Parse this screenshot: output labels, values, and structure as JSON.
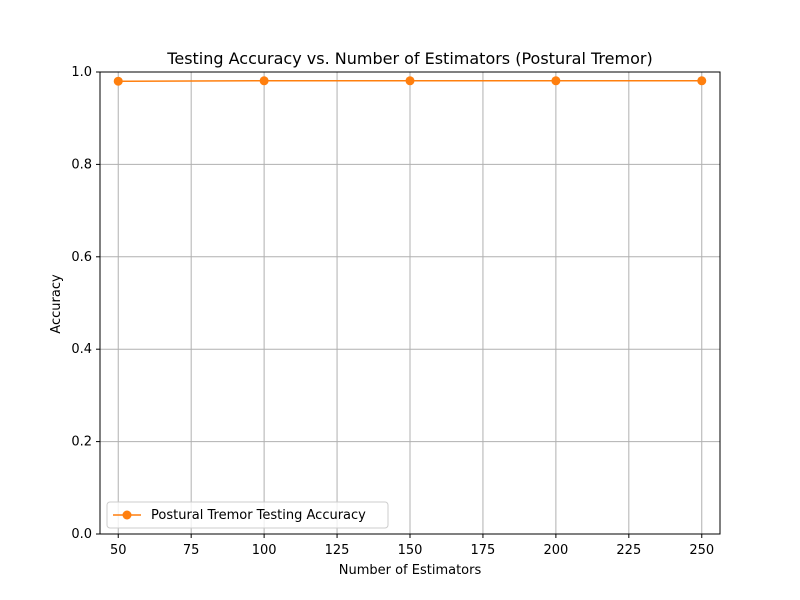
{
  "chart_data": {
    "type": "line",
    "title": "Testing Accuracy vs. Number of Estimators (Postural Tremor)",
    "xlabel": "Number of Estimators",
    "ylabel": "Accuracy",
    "x": [
      50,
      100,
      150,
      200,
      250
    ],
    "series": [
      {
        "name": "Postural Tremor Testing Accuracy",
        "values": [
          0.98,
          0.981,
          0.981,
          0.981,
          0.981
        ],
        "color": "#ff7f0e",
        "marker": "circle"
      }
    ],
    "xlim": [
      43.75,
      256.25
    ],
    "ylim": [
      0.0,
      1.0
    ],
    "xticks": [
      50,
      75,
      100,
      125,
      150,
      175,
      200,
      225,
      250
    ],
    "yticks": [
      0.0,
      0.2,
      0.4,
      0.6,
      0.8,
      1.0
    ],
    "xtick_labels": [
      "50",
      "75",
      "100",
      "125",
      "150",
      "175",
      "200",
      "225",
      "250"
    ],
    "ytick_labels": [
      "0.0",
      "0.2",
      "0.4",
      "0.6",
      "0.8",
      "1.0"
    ],
    "grid": true,
    "legend_position": "lower-left",
    "colors": {
      "grid": "#b0b0b0",
      "axes": "#000000",
      "background": "#ffffff"
    }
  }
}
